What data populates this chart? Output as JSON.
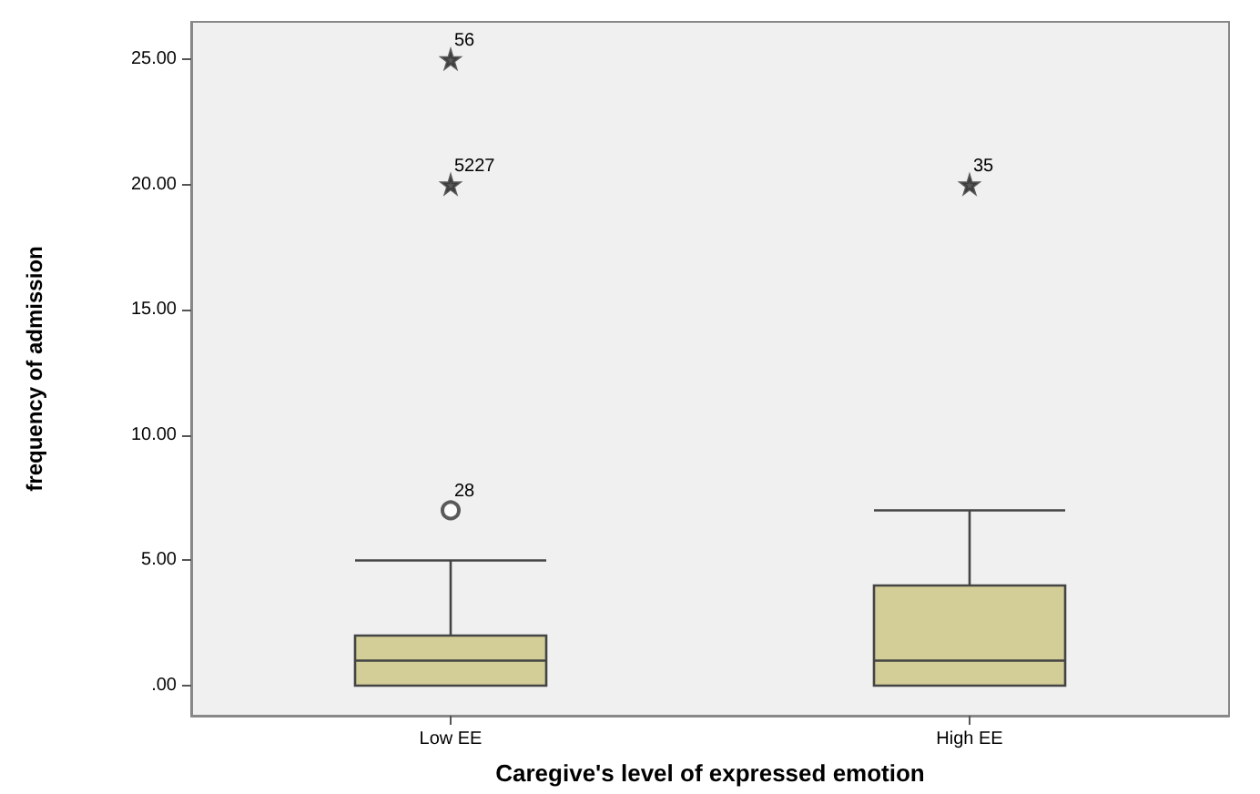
{
  "chart_data": {
    "type": "box",
    "xlabel": "Caregive's level of expressed emotion",
    "ylabel": "frequency of admission",
    "categories": [
      "Low EE",
      "High EE"
    ],
    "color": "#d3ce97",
    "boxes": [
      {
        "low": 0,
        "q1": 0,
        "median": 1,
        "q3": 2,
        "high": 5
      },
      {
        "low": 0,
        "q1": 0,
        "median": 1,
        "q3": 4,
        "high": 7
      }
    ],
    "series": [
      {
        "type": "scatter",
        "marker": "star",
        "color": "#333333",
        "x": [
          "Low EE",
          "Low EE",
          "High EE"
        ],
        "values": [
          25,
          20,
          20
        ]
      },
      {
        "type": "scatter",
        "marker": "circle",
        "color": "#333333",
        "x": [
          "Low EE"
        ],
        "values": [
          7
        ]
      }
    ],
    "ylim": [
      -1.2,
      26.5
    ],
    "yticks": [
      {
        "value": 0,
        "label": ".00"
      },
      {
        "value": 5,
        "label": "5.00"
      },
      {
        "value": 10,
        "label": "10.00"
      },
      {
        "value": 15,
        "label": "15.00"
      },
      {
        "value": 20,
        "label": "20.00"
      },
      {
        "value": 25,
        "label": "25.00"
      }
    ],
    "grid": false,
    "annotations": [
      {
        "text": "56",
        "x": "Low EE",
        "y": 25
      },
      {
        "text": "5227",
        "x": "Low EE",
        "y": 20
      },
      {
        "text": "28",
        "x": "Low EE",
        "y": 7
      },
      {
        "text": "35",
        "x": "High EE",
        "y": 20
      }
    ]
  }
}
